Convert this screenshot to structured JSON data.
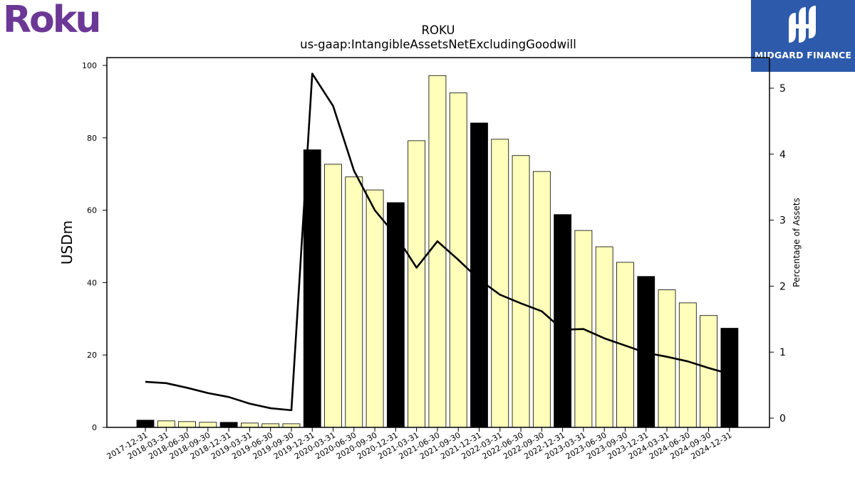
{
  "header": {
    "logo_text": "Roku",
    "brand_name": "MIDGARD FINANCE"
  },
  "colors": {
    "logo": "#6c3896",
    "brand_box": "#2d5aab",
    "bar_q4": "#000000",
    "bar_other": "#ffffbb",
    "bar_edge": "#000000",
    "line": "#000000"
  },
  "chart_data": {
    "type": "bar",
    "title": "ROKU",
    "subtitle": "us-gaap:IntangibleAssetsNetExcludingGoodwill",
    "ylabel": "USDm",
    "y2label": "Percentage of Assets",
    "ylim": [
      0,
      100
    ],
    "y2lim": [
      -0.1,
      5.6
    ],
    "yticks": [
      0,
      20,
      40,
      60,
      80,
      100
    ],
    "y2ticks": [
      0,
      1,
      2,
      3,
      4,
      5
    ],
    "categories": [
      "2017-12-31",
      "2018-03-31",
      "2018-06-30",
      "2018-09-30",
      "2018-12-31",
      "2019-03-31",
      "2019-06-30",
      "2019-09-30",
      "2019-12-31",
      "2020-03-31",
      "2020-06-30",
      "2020-09-30",
      "2020-12-31",
      "2021-03-31",
      "2021-06-30",
      "2021-09-30",
      "2021-12-31",
      "2022-03-31",
      "2022-06-30",
      "2022-09-30",
      "2022-12-31",
      "2023-03-31",
      "2023-06-30",
      "2023-09-30",
      "2023-12-31",
      "2024-03-31",
      "2024-06-30",
      "2024-09-30",
      "2024-12-31"
    ],
    "series": [
      {
        "type": "bar",
        "values": [
          2.0,
          1.8,
          1.6,
          1.4,
          1.4,
          1.2,
          1.0,
          1.0,
          76.7,
          72.7,
          69.2,
          65.6,
          62.1,
          79.2,
          97.2,
          92.4,
          84.1,
          79.6,
          75.1,
          70.7,
          58.8,
          54.4,
          49.9,
          45.6,
          41.7,
          38.0,
          34.4,
          30.9,
          27.4
        ],
        "q4_highlight": [
          true,
          false,
          false,
          false,
          true,
          false,
          false,
          false,
          true,
          false,
          false,
          false,
          true,
          false,
          false,
          false,
          true,
          false,
          false,
          false,
          true,
          false,
          false,
          false,
          true,
          false,
          false,
          false,
          true
        ]
      },
      {
        "type": "line",
        "axis": "right",
        "values": [
          0.55,
          0.53,
          0.46,
          0.38,
          0.32,
          0.22,
          0.15,
          0.12,
          5.22,
          4.73,
          3.75,
          3.15,
          2.77,
          2.28,
          2.68,
          2.4,
          2.1,
          1.87,
          1.74,
          1.62,
          1.34,
          1.35,
          1.21,
          1.1,
          0.99,
          0.93,
          0.86,
          0.76,
          0.67
        ]
      }
    ]
  }
}
